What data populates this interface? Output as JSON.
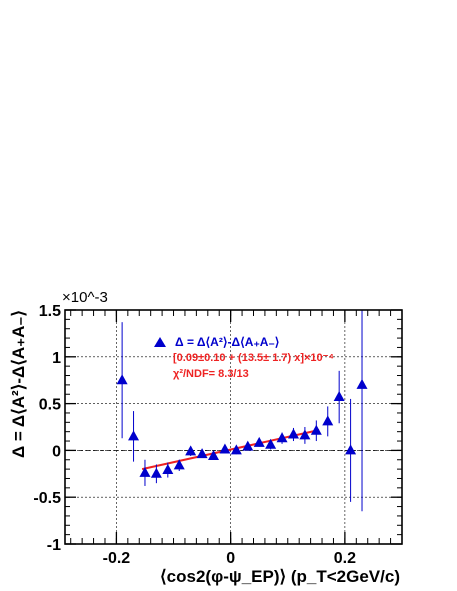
{
  "chart_data": {
    "type": "scatter",
    "title": "",
    "xlabel": "⟨cos2(φ-ψ_EP)⟩ (p_T<2GeV/c)",
    "ylabel": "Δ = Δ⟨A²⟩-Δ⟨A₊A₋⟩",
    "y_multiplier": "×10^-3",
    "xlim": [
      -0.29,
      0.3
    ],
    "ylim": [
      -1.0,
      1.5
    ],
    "x_ticks": [
      "-0.2",
      "0",
      "0.2"
    ],
    "y_ticks": [
      "-1",
      "-0.5",
      "0",
      "0.5",
      "1",
      "1.5"
    ],
    "grid": true,
    "legend_position": "top-right",
    "series": [
      {
        "name": "Δ = Δ⟨A²⟩-Δ⟨A₊A₋⟩",
        "marker": "triangle-up",
        "color": "#0000cc",
        "points": [
          {
            "x": -0.19,
            "y": 0.75,
            "err": 0.62
          },
          {
            "x": -0.17,
            "y": 0.15,
            "err": 0.27
          },
          {
            "x": -0.15,
            "y": -0.24,
            "err": 0.14
          },
          {
            "x": -0.13,
            "y": -0.25,
            "err": 0.1
          },
          {
            "x": -0.11,
            "y": -0.21,
            "err": 0.08
          },
          {
            "x": -0.09,
            "y": -0.16,
            "err": 0.06
          },
          {
            "x": -0.07,
            "y": -0.01,
            "err": 0.05
          },
          {
            "x": -0.05,
            "y": -0.04,
            "err": 0.04
          },
          {
            "x": -0.03,
            "y": -0.06,
            "err": 0.04
          },
          {
            "x": -0.01,
            "y": 0.01,
            "err": 0.04
          },
          {
            "x": 0.01,
            "y": 0.0,
            "err": 0.04
          },
          {
            "x": 0.03,
            "y": 0.04,
            "err": 0.04
          },
          {
            "x": 0.05,
            "y": 0.08,
            "err": 0.04
          },
          {
            "x": 0.07,
            "y": 0.06,
            "err": 0.05
          },
          {
            "x": 0.09,
            "y": 0.13,
            "err": 0.06
          },
          {
            "x": 0.11,
            "y": 0.17,
            "err": 0.07
          },
          {
            "x": 0.13,
            "y": 0.16,
            "err": 0.09
          },
          {
            "x": 0.15,
            "y": 0.21,
            "err": 0.11
          },
          {
            "x": 0.17,
            "y": 0.31,
            "err": 0.16
          },
          {
            "x": 0.19,
            "y": 0.57,
            "err": 0.28
          },
          {
            "x": 0.21,
            "y": 0.0,
            "err": 0.55
          },
          {
            "x": 0.23,
            "y": 0.7,
            "err": 1.35
          }
        ]
      }
    ],
    "fit": {
      "color": "#ee2222",
      "intercept": 0.009,
      "slope": 1.35,
      "x_range": [
        -0.155,
        0.155
      ],
      "label": "[0.09±0.10 + (13.5± 1.7) x]×10⁻⁴",
      "chi2_label": "χ²/NDF= 8.3/13"
    }
  }
}
